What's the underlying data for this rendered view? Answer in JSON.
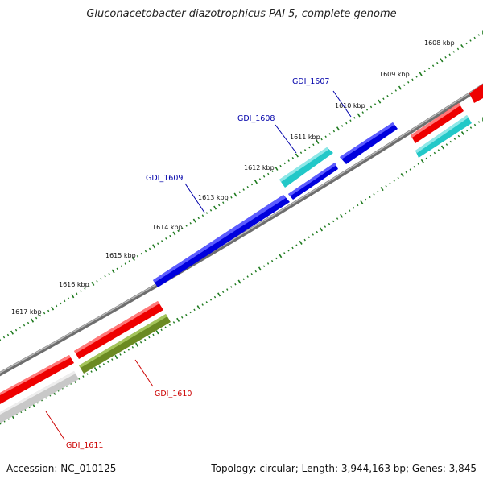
{
  "title": "Gluconacetobacter diazotrophicus PAI 5, complete genome",
  "footer": {
    "accession": "Accession: NC_010125",
    "topology": "Topology: circular; Length: 3,944,163 bp; Genes: 3,845"
  },
  "ruler": {
    "tick_labels": [
      "1608 kbp",
      "1609 kbp",
      "1610 kbp",
      "1611 kbp",
      "1612 kbp",
      "1613 kbp",
      "1614 kbp",
      "1615 kbp",
      "1616 kbp",
      "1617 kbp"
    ]
  },
  "colors": {
    "forward_gene": "#0000dd",
    "forward_gene_alt": "#22c8c8",
    "reverse_gene": "#ee0000",
    "reverse_gene_alt": "#6b8a22",
    "unknown_gene": "#c8c8c8",
    "backbone": "#808080",
    "ruler_ticks": "#1e7a1e",
    "label_forward": "#0000aa",
    "label_reverse": "#cc0000"
  },
  "genes": [
    {
      "name": "GDI_1607",
      "strand": "forward",
      "color": "forward_gene"
    },
    {
      "name": "GDI_1608",
      "strand": "forward",
      "color": "forward_gene_alt"
    },
    {
      "name": "GDI_1609",
      "strand": "forward",
      "color": "forward_gene"
    },
    {
      "name": "GDI_1610",
      "strand": "reverse",
      "color": "reverse_gene_alt"
    },
    {
      "name": "GDI_1611",
      "strand": "reverse",
      "color": "unknown_gene"
    }
  ]
}
